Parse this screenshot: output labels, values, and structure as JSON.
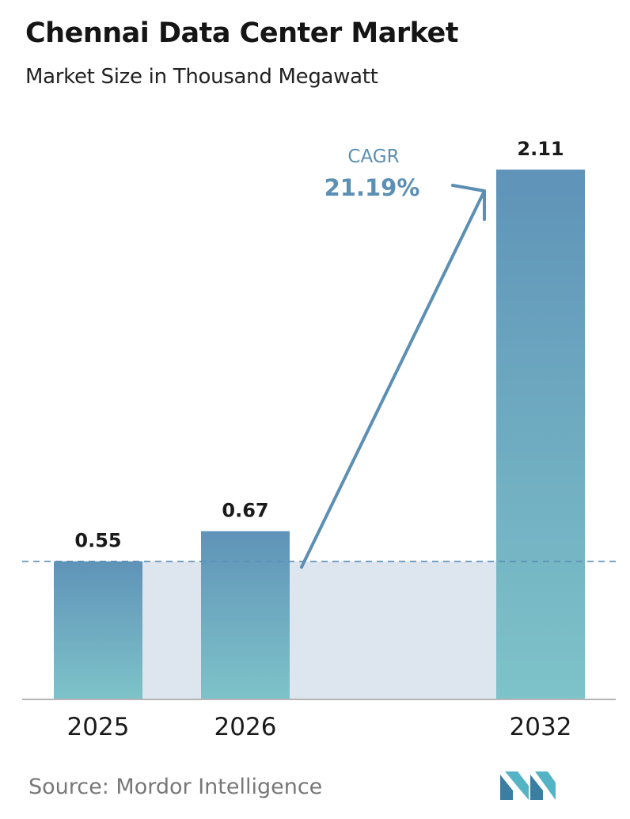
{
  "header": {
    "title": "Chennai Data Center Market",
    "subtitle": "Market Size in Thousand Megawatt"
  },
  "chart_data": {
    "type": "bar",
    "title": "Chennai Data Center Market",
    "subtitle": "Market Size in Thousand Megawatt",
    "categories": [
      "2025",
      "2026",
      "2032"
    ],
    "values": [
      0.55,
      0.67,
      2.11
    ],
    "value_labels": [
      "0.55",
      "0.67",
      "2.11"
    ],
    "annotation": {
      "label": "CAGR",
      "value": "21.19%"
    },
    "reference_line": 0.55,
    "grid": false
  },
  "colors": {
    "bar_top": "#5f93b8",
    "bar_bottom": "#7ec3c9",
    "band": "#dde6ef",
    "dash": "#5b8fb3",
    "arrow": "#5b8fb3",
    "axis": "#b5b5b5",
    "logo_dark": "#3b7ea1",
    "logo_light": "#55b3c6"
  },
  "footer": {
    "source": "Source:  Mordor Intelligence",
    "logo_icon": "mordor-intelligence-logo"
  }
}
